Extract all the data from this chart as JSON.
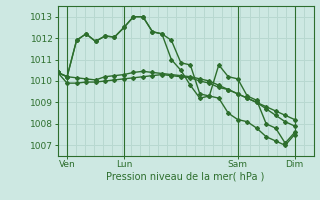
{
  "bg_color": "#cde8e2",
  "grid_color": "#b8d8d0",
  "line_color": "#2d6e2d",
  "text_color": "#2d6e2d",
  "xlabel": "Pression niveau de la mer( hPa )",
  "ylim": [
    1006.5,
    1013.5
  ],
  "yticks": [
    1007,
    1008,
    1009,
    1010,
    1011,
    1012,
    1013
  ],
  "xtick_labels": [
    "Ven",
    "Lun",
    "Sam",
    "Dim"
  ],
  "xtick_pos": [
    1,
    7,
    19,
    25
  ],
  "vline_pos": [
    1,
    7,
    19,
    25
  ],
  "xlim": [
    0,
    27
  ],
  "series": [
    [
      1010.4,
      1010.2,
      1011.9,
      1012.2,
      1011.85,
      1012.1,
      1012.05,
      1012.5,
      1013.0,
      1013.0,
      1012.3,
      1012.2,
      1011.9,
      1010.85,
      1010.75,
      1009.4,
      1009.3,
      1010.75,
      1010.2,
      1010.1,
      1009.3,
      1009.1,
      1008.0,
      1007.8,
      1007.1,
      1007.6
    ],
    [
      1010.4,
      1010.2,
      1011.9,
      1012.2,
      1011.85,
      1012.1,
      1012.05,
      1012.5,
      1013.0,
      1013.0,
      1012.3,
      1012.2,
      1011.0,
      1010.5,
      1009.8,
      1009.2,
      1009.3,
      1009.2,
      1008.5,
      1008.2,
      1008.1,
      1007.8,
      1007.4,
      1007.2,
      1007.0,
      1007.5
    ],
    [
      1010.4,
      1010.2,
      1010.15,
      1010.1,
      1010.05,
      1010.2,
      1010.25,
      1010.3,
      1010.4,
      1010.45,
      1010.4,
      1010.35,
      1010.3,
      1010.25,
      1010.2,
      1010.1,
      1010.0,
      1009.8,
      1009.6,
      1009.4,
      1009.2,
      1009.0,
      1008.7,
      1008.4,
      1008.1,
      1007.9
    ],
    [
      1010.4,
      1009.9,
      1009.9,
      1009.95,
      1009.95,
      1010.0,
      1010.05,
      1010.1,
      1010.15,
      1010.2,
      1010.25,
      1010.3,
      1010.25,
      1010.2,
      1010.15,
      1010.0,
      1009.9,
      1009.7,
      1009.6,
      1009.4,
      1009.2,
      1009.0,
      1008.8,
      1008.6,
      1008.4,
      1008.2
    ]
  ]
}
